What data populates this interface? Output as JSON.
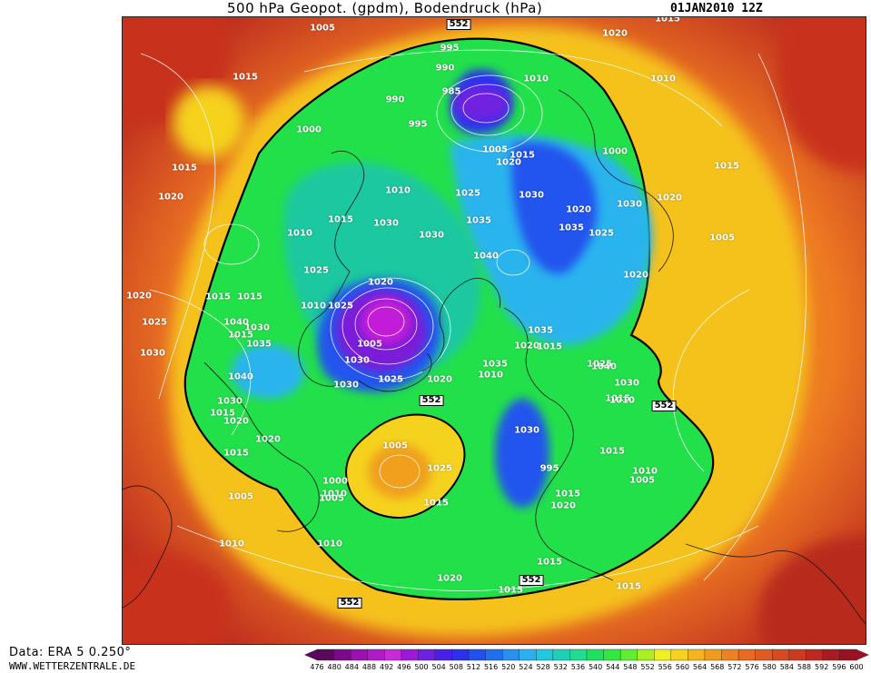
{
  "header": {
    "title": "500 hPa Geopot. (gpdm), Bodendruck (hPa)",
    "timestamp": "01JAN2010 12Z"
  },
  "footer": {
    "data_source": "Data: ERA 5 0.250°",
    "website": "WWW.WETTERZENTRALE.DE"
  },
  "isohypse_label": "552",
  "colors": {
    "outer": "#c03020",
    "orange": "#ee7a22",
    "yellow": "#f5d21e",
    "green": "#22e04a",
    "teal": "#1ec8a0",
    "lightblue": "#2ab4ee",
    "blue": "#2255ee",
    "purple": "#7a1ad8",
    "magenta": "#c21ad8"
  },
  "colorbar": {
    "ticks": [
      "476",
      "480",
      "484",
      "488",
      "492",
      "496",
      "500",
      "504",
      "508",
      "512",
      "516",
      "520",
      "524",
      "528",
      "532",
      "536",
      "540",
      "544",
      "548",
      "552",
      "556",
      "560",
      "564",
      "568",
      "572",
      "576",
      "580",
      "584",
      "588",
      "592",
      "596",
      "600"
    ],
    "colors": [
      "#5a0a5a",
      "#7a0a8a",
      "#9a10b0",
      "#b01ac8",
      "#c82ad8",
      "#9a1ad8",
      "#7020e0",
      "#4a20e8",
      "#2a30ee",
      "#2050ee",
      "#2070ee",
      "#2a90f0",
      "#2ab0f0",
      "#20c8e0",
      "#1ed0b8",
      "#1edc90",
      "#20e060",
      "#30e840",
      "#60ee30",
      "#a8f020",
      "#f0f020",
      "#f5d21e",
      "#f5b41e",
      "#f09a1e",
      "#ee8222",
      "#e86a22",
      "#e05a22",
      "#d84a22",
      "#cc3a22",
      "#be2a22",
      "#aa1a22",
      "#981222"
    ]
  },
  "pressure_labels": [
    "1005",
    "995",
    "1020",
    "1015",
    "990",
    "1010",
    "985",
    "1015",
    "1000",
    "995",
    "990",
    "1010",
    "1015",
    "1000",
    "1005",
    "1020",
    "1015",
    "1020",
    "1015",
    "1010",
    "1010",
    "1025",
    "1030",
    "1020",
    "1015",
    "1030",
    "1030",
    "1035",
    "1035",
    "1025",
    "1020",
    "1005",
    "1020",
    "1040",
    "1030",
    "1020",
    "1025",
    "1010",
    "1015",
    "1015",
    "1040",
    "1025",
    "1030",
    "1030",
    "1035",
    "1015",
    "1020",
    "1005",
    "1035",
    "1020",
    "1015",
    "1040",
    "1035",
    "1025",
    "1010",
    "1030",
    "1030",
    "1040",
    "1015",
    "1030",
    "1025",
    "1030",
    "1025",
    "1020",
    "1015",
    "1020",
    "1020",
    "1010",
    "1015",
    "1030",
    "1005",
    "1025",
    "1000",
    "1015",
    "1005",
    "1010",
    "1020",
    "1010",
    "995",
    "1005",
    "1015",
    "1010",
    "1015",
    "1005",
    "1010",
    "1015",
    "1020",
    "1015",
    "1015"
  ]
}
